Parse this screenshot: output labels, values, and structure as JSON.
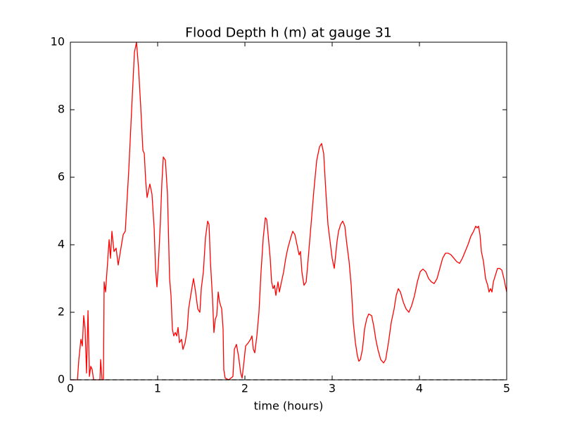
{
  "chart_data": {
    "type": "line",
    "title": "Flood Depth h (m) at gauge 31",
    "xlabel": "time (hours)",
    "xlim": [
      0,
      5
    ],
    "ylim": [
      0,
      10
    ],
    "xticks": [
      0,
      1,
      2,
      3,
      4,
      5
    ],
    "yticks": [
      0,
      2,
      4,
      6,
      8,
      10
    ],
    "grid": false,
    "series": [
      {
        "color": "#ff0000",
        "linestyle": "solid",
        "x": [
          0,
          0.081,
          0.097,
          0.121,
          0.137,
          0.153,
          0.169,
          0.185,
          0.202,
          0.218,
          0.234,
          0.25,
          0.266,
          0.339,
          0.347,
          0.363,
          0.379,
          0.387,
          0.403,
          0.427,
          0.444,
          0.46,
          0.476,
          0.5,
          0.524,
          0.548,
          0.573,
          0.605,
          0.629,
          0.669,
          0.702,
          0.734,
          0.758,
          0.782,
          0.806,
          0.831,
          0.847,
          0.863,
          0.879,
          0.895,
          0.911,
          0.935,
          0.96,
          0.976,
          0.992,
          1.008,
          1.032,
          1.048,
          1.065,
          1.089,
          1.113,
          1.137,
          1.153,
          1.169,
          1.185,
          1.202,
          1.218,
          1.234,
          1.25,
          1.274,
          1.29,
          1.315,
          1.339,
          1.355,
          1.379,
          1.411,
          1.435,
          1.46,
          1.484,
          1.5,
          1.524,
          1.548,
          1.573,
          1.589,
          1.605,
          1.629,
          1.645,
          1.661,
          1.677,
          1.694,
          1.71,
          1.734,
          1.75,
          1.758,
          1.774,
          1.815,
          1.863,
          1.879,
          1.903,
          1.927,
          1.952,
          1.968,
          1.992,
          2.008,
          2.04,
          2.065,
          2.081,
          2.097,
          2.113,
          2.137,
          2.161,
          2.185,
          2.21,
          2.234,
          2.25,
          2.266,
          2.29,
          2.306,
          2.323,
          2.339,
          2.355,
          2.379,
          2.395,
          2.419,
          2.444,
          2.468,
          2.492,
          2.524,
          2.548,
          2.573,
          2.597,
          2.621,
          2.637,
          2.653,
          2.677,
          2.702,
          2.726,
          2.758,
          2.79,
          2.823,
          2.855,
          2.879,
          2.903,
          2.927,
          2.952,
          2.976,
          3.0,
          3.024,
          3.04,
          3.056,
          3.073,
          3.097,
          3.121,
          3.145,
          3.169,
          3.194,
          3.218,
          3.242,
          3.266,
          3.29,
          3.306,
          3.323,
          3.347,
          3.371,
          3.395,
          3.419,
          3.452,
          3.476,
          3.5,
          3.524,
          3.556,
          3.589,
          3.613,
          3.645,
          3.677,
          3.71,
          3.734,
          3.758,
          3.782,
          3.815,
          3.847,
          3.879,
          3.911,
          3.944,
          3.976,
          4.008,
          4.04,
          4.073,
          4.105,
          4.137,
          4.169,
          4.202,
          4.234,
          4.266,
          4.298,
          4.331,
          4.363,
          4.395,
          4.427,
          4.46,
          4.492,
          4.524,
          4.556,
          4.589,
          4.621,
          4.645,
          4.661,
          4.677,
          4.694,
          4.71,
          4.734,
          4.758,
          4.782,
          4.798,
          4.815,
          4.831,
          4.847,
          4.871,
          4.895,
          4.919,
          4.944,
          4.968,
          5.0
        ],
        "values": [
          0,
          0,
          0.6,
          1.2,
          1.0,
          1.9,
          1.5,
          0.2,
          2.05,
          0.1,
          0.4,
          0.3,
          0,
          0,
          0.6,
          0,
          0,
          2.9,
          2.6,
          3.5,
          4.15,
          3.6,
          4.4,
          3.8,
          3.9,
          3.4,
          3.8,
          4.3,
          4.4,
          6.2,
          8,
          9.7,
          10,
          9.2,
          8.1,
          6.8,
          6.7,
          5.9,
          5.4,
          5.6,
          5.8,
          5.5,
          4.5,
          3.3,
          2.75,
          3.4,
          4.7,
          5.8,
          6.6,
          6.5,
          5.5,
          3,
          2.5,
          1.5,
          1.3,
          1.4,
          1.3,
          1.55,
          1.1,
          1.2,
          0.9,
          1.1,
          1.5,
          2.1,
          2.5,
          3.0,
          2.6,
          2.1,
          2.0,
          2.7,
          3.2,
          4.2,
          4.7,
          4.6,
          3.5,
          2.4,
          1.4,
          1.8,
          1.9,
          2.6,
          2.3,
          2.1,
          1.5,
          0.3,
          0.05,
          0,
          0.1,
          0.9,
          1.05,
          0.7,
          0.2,
          0.05,
          0.6,
          1.0,
          1.1,
          1.2,
          1.3,
          0.9,
          0.8,
          1.3,
          2.0,
          3.2,
          4.2,
          4.8,
          4.75,
          4.3,
          3.6,
          2.9,
          2.7,
          2.8,
          2.5,
          2.9,
          2.6,
          2.9,
          3.2,
          3.6,
          3.9,
          4.2,
          4.4,
          4.3,
          4.0,
          3.7,
          3.8,
          3.2,
          2.8,
          2.9,
          3.6,
          4.6,
          5.6,
          6.5,
          6.9,
          7.0,
          6.7,
          5.6,
          4.6,
          4.1,
          3.6,
          3.3,
          3.7,
          4.1,
          4.4,
          4.6,
          4.7,
          4.55,
          4.0,
          3.5,
          2.8,
          1.7,
          1.1,
          0.7,
          0.55,
          0.6,
          0.9,
          1.5,
          1.8,
          1.95,
          1.9,
          1.6,
          1.2,
          0.9,
          0.6,
          0.5,
          0.6,
          1.1,
          1.7,
          2.1,
          2.5,
          2.7,
          2.6,
          2.3,
          2.1,
          2.0,
          2.2,
          2.5,
          2.9,
          3.2,
          3.28,
          3.2,
          3.0,
          2.9,
          2.85,
          3.0,
          3.3,
          3.6,
          3.75,
          3.75,
          3.7,
          3.6,
          3.5,
          3.45,
          3.6,
          3.8,
          4.0,
          4.25,
          4.4,
          4.55,
          4.5,
          4.55,
          4.3,
          3.8,
          3.5,
          3.0,
          2.8,
          2.6,
          2.7,
          2.6,
          2.9,
          3.1,
          3.3,
          3.3,
          3.25,
          3.0,
          2.6
        ]
      },
      {
        "color": "#000000",
        "linestyle": "dashed",
        "x": [
          0,
          5
        ],
        "values": [
          0,
          0
        ]
      }
    ]
  }
}
